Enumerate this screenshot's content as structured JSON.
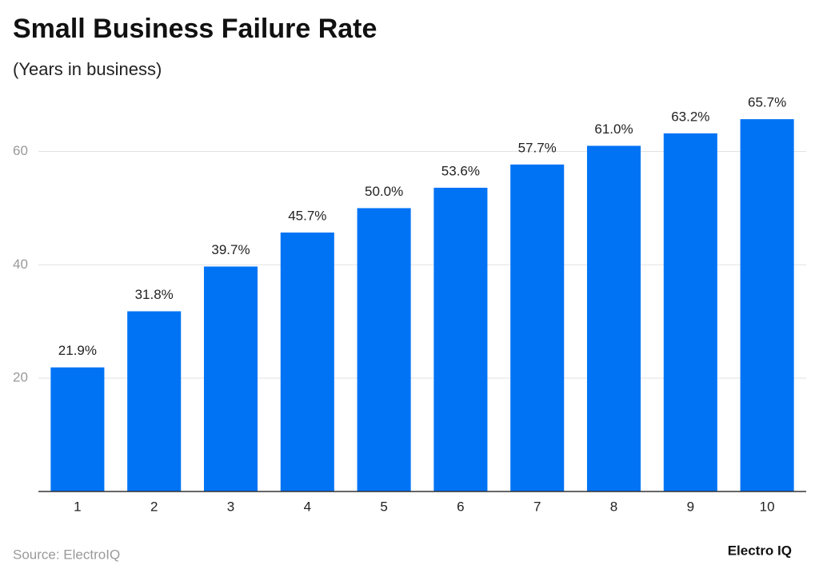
{
  "chart_data": {
    "type": "bar",
    "title": "Small Business Failure Rate",
    "subtitle": "(Years in business)",
    "source": "Source: ElectroIQ",
    "brand": "Electro IQ",
    "categories": [
      "1",
      "2",
      "3",
      "4",
      "5",
      "6",
      "7",
      "8",
      "9",
      "10"
    ],
    "values": [
      21.9,
      31.8,
      39.7,
      45.7,
      50.0,
      53.6,
      57.7,
      61.0,
      63.2,
      65.7
    ],
    "value_labels": [
      "21.9%",
      "31.8%",
      "39.7%",
      "45.7%",
      "50.0%",
      "53.6%",
      "57.7%",
      "61.0%",
      "63.2%",
      "65.7%"
    ],
    "color": "#0073f5",
    "ylim": [
      0,
      66
    ],
    "yticks": [
      20,
      40,
      60
    ],
    "grid": true
  }
}
